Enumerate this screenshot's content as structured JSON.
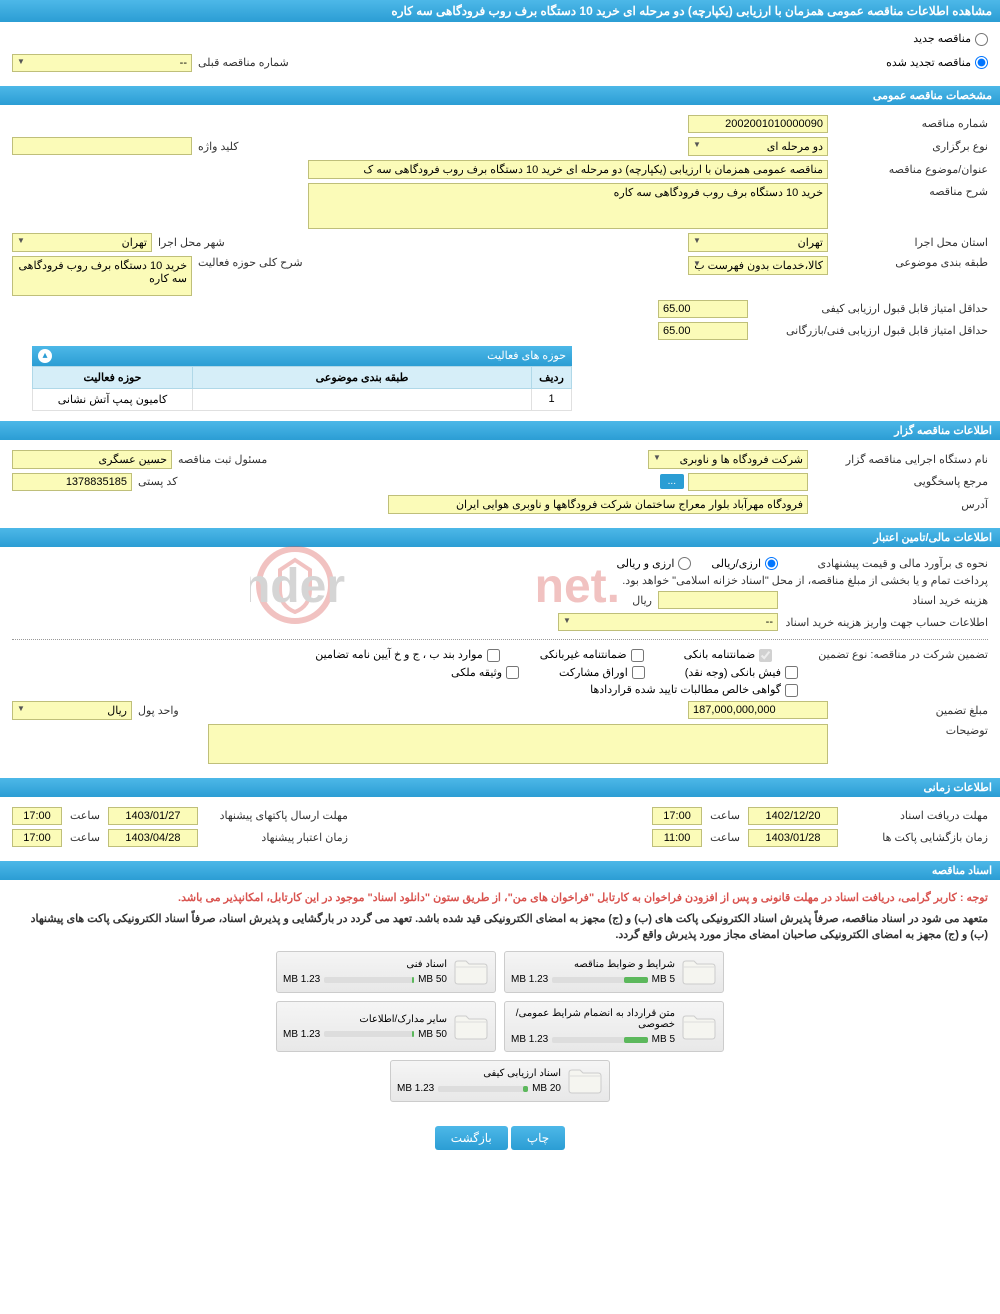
{
  "page_title": "مشاهده اطلاعات مناقصه عمومی همزمان با ارزیابی (یکپارچه) دو مرحله ای خرید 10 دستگاه برف روب فرودگاهی سه کاره",
  "colors": {
    "header_grad_top": "#4db8e8",
    "header_grad_bottom": "#2b9dd4",
    "field_bg": "#fbfbb8",
    "field_border": "#bfbf7a",
    "note_red": "#d9534f",
    "bar_green": "#5cb85c"
  },
  "status": {
    "new_label": "مناقصه جدید",
    "renewed_label": "مناقصه تجدید شده",
    "selected": "renewed",
    "prev_number_label": "شماره مناقصه قبلی",
    "prev_number_value": "--"
  },
  "sections": {
    "general": "مشخصات مناقصه عمومی",
    "organizer": "اطلاعات مناقصه گزار",
    "financial": "اطلاعات مالی/تامین اعتبار",
    "timing": "اطلاعات زمانی",
    "documents": "اسناد مناقصه"
  },
  "general": {
    "tender_number_label": "شماره مناقصه",
    "tender_number": "2002001010000090",
    "holding_type_label": "نوع برگزاری",
    "holding_type": "دو مرحله ای",
    "keyword_label": "کلید واژه",
    "keyword": "",
    "subject_label": "عنوان/موضوع مناقصه",
    "subject": "مناقصه عمومی همزمان با ارزیابی (یکپارچه) دو مرحله ای خرید 10 دستگاه برف روب فرودگاهی سه ک",
    "description_label": "شرح مناقصه",
    "description": "خرید 10 دستگاه برف روب فرودگاهی سه کاره",
    "province_label": "استان محل اجرا",
    "province": "تهران",
    "city_label": "شهر محل اجرا",
    "city": "تهران",
    "category_label": "طبقه بندی موضوعی",
    "category": "کالا،خدمات بدون فهرست ب",
    "activity_desc_label": "شرح کلی حوزه فعالیت",
    "activity_desc": "خرید 10 دستگاه برف روب فرودگاهی سه کاره",
    "min_qual_score_label": "حداقل امتیاز قابل قبول ارزیابی کیفی",
    "min_qual_score": "65.00",
    "min_tech_score_label": "حداقل امتیاز قابل قبول ارزیابی فنی/بازرگانی",
    "min_tech_score": "65.00"
  },
  "activity_table": {
    "title": "حوزه های فعالیت",
    "columns": [
      "ردیف",
      "طبقه بندی موضوعی",
      "حوزه فعالیت"
    ],
    "rows": [
      [
        "1",
        "",
        "کامیون پمپ آتش نشانی"
      ]
    ]
  },
  "organizer": {
    "exec_name_label": "نام دستگاه اجرایی مناقصه گزار",
    "exec_name": "شرکت فرودگاه ها و ناوبری",
    "registrar_label": "مسئول ثبت مناقصه",
    "registrar": "حسین عسگری",
    "responder_label": "مرجع پاسخگویی",
    "responder": "",
    "postal_label": "کد پستی",
    "postal": "1378835185",
    "address_label": "آدرس",
    "address": "فرودگاه مهرآباد بلوار معراج ساختمان شرکت فرودگاهها و ناوبری هوایی ایران",
    "more_btn": "..."
  },
  "financial": {
    "estimate_method_label": "نحوه ی برآورد مالی و قیمت پیشنهادی",
    "option_rial": "ارزی/ریالی",
    "option_currency": "ارزی و ریالی",
    "payment_note": "پرداخت تمام و یا بخشی از مبلغ مناقصه، از محل \"اسناد خزانه اسلامی\" خواهد بود.",
    "doc_cost_label": "هزینه خرید اسناد",
    "doc_cost": "",
    "doc_cost_unit": "ریال",
    "account_info_label": "اطلاعات حساب جهت واریز هزینه خرید اسناد",
    "account_info": "--",
    "guarantee_type_label": "تضمین شرکت در مناقصه:   نوع تضمین",
    "g_bank": "ضمانتنامه بانکی",
    "g_nonbank": "ضمانتنامه غیربانکی",
    "g_items": "موارد بند ب ، ج و خ آیین نامه تضامین",
    "g_fish": "فیش بانکی (وجه نقد)",
    "g_stock": "اوراق مشارکت",
    "g_property": "وثیقه ملکی",
    "g_certified": "گواهی خالص مطالبات تایید شده قراردادها",
    "guarantee_amount_label": "مبلغ تضمین",
    "guarantee_amount": "187,000,000,000",
    "currency_unit_label": "واحد پول",
    "currency_unit": "ریال",
    "remarks_label": "توضیحات",
    "remarks": ""
  },
  "timing": {
    "doc_receive_deadline_label": "مهلت دریافت اسناد",
    "doc_receive_date": "1402/12/20",
    "doc_receive_time": "17:00",
    "proposal_deadline_label": "مهلت ارسال پاکتهای پیشنهاد",
    "proposal_date": "1403/01/27",
    "proposal_time": "17:00",
    "opening_label": "زمان بازگشایی پاکت ها",
    "opening_date": "1403/01/28",
    "opening_time": "11:00",
    "validity_label": "زمان اعتبار پیشنهاد",
    "validity_date": "1403/04/28",
    "validity_time": "17:00",
    "time_lbl": "ساعت"
  },
  "documents": {
    "note1": "توجه : کاربر گرامی، دریافت اسناد در مهلت قانونی و پس از افزودن فراخوان به کارتابل \"فراخوان های من\"، از طریق ستون \"دانلود اسناد\" موجود در این کارتابل، امکانپذیر می باشد.",
    "note2": "متعهد می شود در اسناد مناقصه، صرفاً پذیرش اسناد الکترونیکی پاکت های (ب) و (ج) مجهز به امضای الکترونیکی قید شده باشد. تعهد می گردد در بارگشایی و پذیرش اسناد، صرفاً اسناد الکترونیکی پاکت های پیشنهاد (ب) و (ج) مجهز به امضای الکترونیکی صاحبان امضای مجاز مورد پذیرش واقع گردد.",
    "files": [
      {
        "title": "شرایط و ضوابط مناقصه",
        "used": "1.23 MB",
        "total": "5 MB",
        "pct": 24.6
      },
      {
        "title": "اسناد فنی",
        "used": "1.23 MB",
        "total": "50 MB",
        "pct": 2.46
      },
      {
        "title": "متن قرارداد به انضمام شرایط عمومی/خصوصی",
        "used": "1.23 MB",
        "total": "5 MB",
        "pct": 24.6
      },
      {
        "title": "سایر مدارک/اطلاعات",
        "used": "1.23 MB",
        "total": "50 MB",
        "pct": 2.46
      },
      {
        "title": "اسناد ارزیابی کیفی",
        "used": "1.23 MB",
        "total": "20 MB",
        "pct": 6.15
      }
    ]
  },
  "buttons": {
    "print": "چاپ",
    "back": "بازگشت"
  },
  "watermark": "AriaTender.net"
}
